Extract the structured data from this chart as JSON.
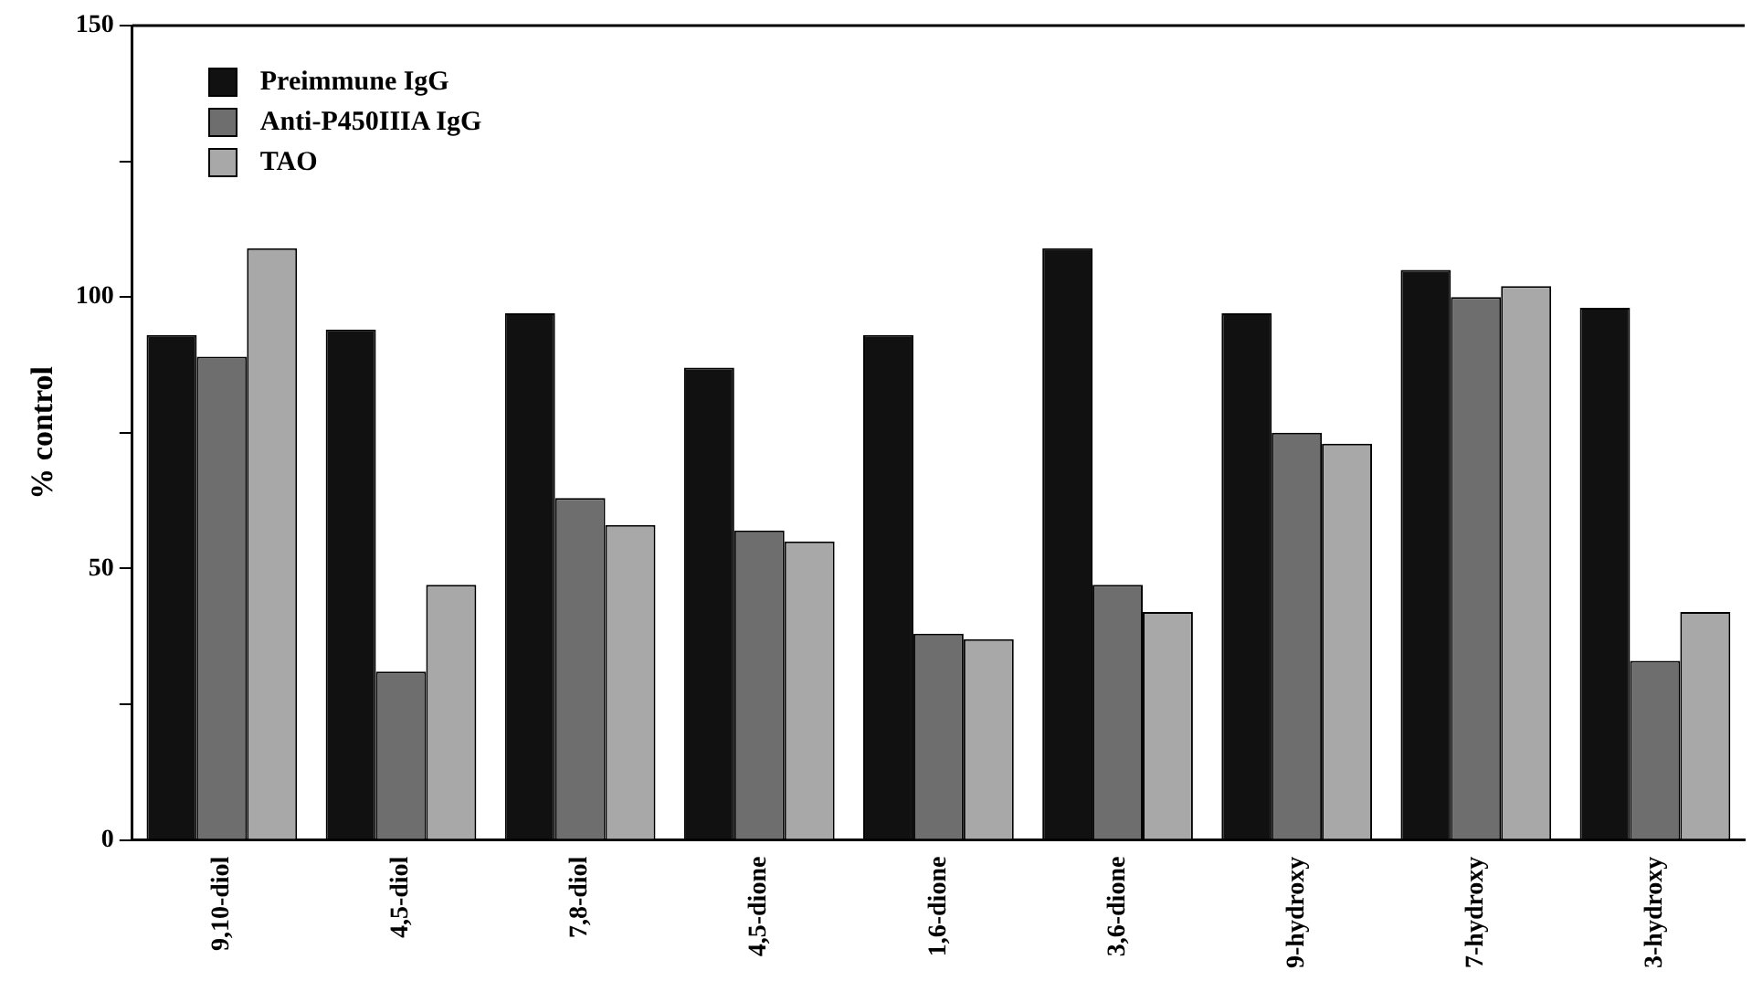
{
  "chart_data": {
    "type": "bar",
    "ylabel": "% control",
    "categories": [
      "9,10-diol",
      "4,5-diol",
      "7,8-diol",
      "4,5-dione",
      "1,6-dione",
      "3,6-dione",
      "9-hydroxy",
      "7-hydroxy",
      "3-hydroxy"
    ],
    "series": [
      {
        "name": "Preimmune IgG",
        "color": "#111111",
        "values": [
          93,
          94,
          97,
          87,
          93,
          109,
          97,
          105,
          98
        ]
      },
      {
        "name": "Anti-P450IIIA IgG",
        "color": "#6e6e6e",
        "values": [
          89,
          31,
          63,
          57,
          38,
          47,
          75,
          100,
          33
        ]
      },
      {
        "name": "TAO",
        "color": "#a8a8a8",
        "values": [
          109,
          47,
          58,
          55,
          37,
          42,
          73,
          102,
          42
        ]
      }
    ],
    "ylim": [
      0,
      150
    ],
    "yticks": [
      0,
      {
        "value": 25,
        "label": null
      },
      50,
      {
        "value": 75,
        "label": null
      },
      100,
      {
        "value": 125,
        "label": null
      },
      150
    ],
    "grid": false,
    "legend": "top left"
  }
}
